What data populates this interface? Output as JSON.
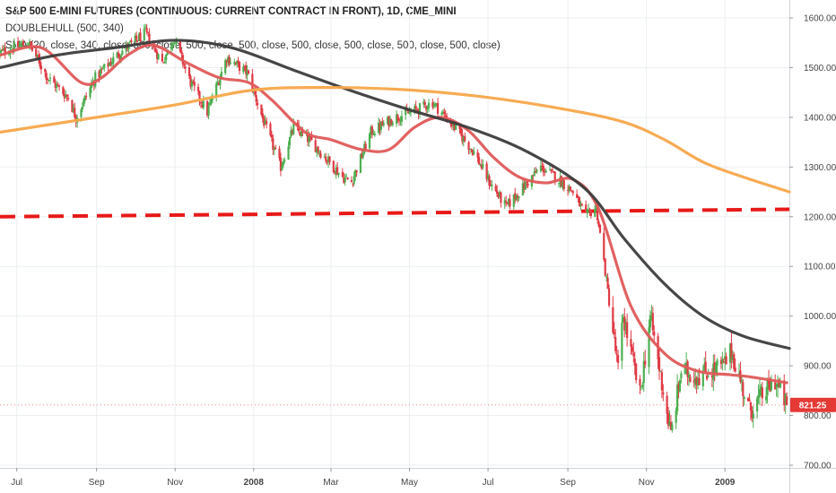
{
  "legend": {
    "title": "S&P 500 E-MINI FUTURES (CONTINUOUS: CURRENT CONTRACT IN FRONT), 1D, CME_MINI",
    "line2": "DOUBLEHULL (500, 340)",
    "line3": "SMA (20, close, 340, close, 500, close, 500, close, 500, close, 500, close, 500, close, 500, close, 500, close)"
  },
  "colors": {
    "up": "#4caf50",
    "down": "#e03a45",
    "hma": "#e05858",
    "ma_dark": "#3c3c3c",
    "ma_orange": "#f7a64a",
    "support": "#e81919",
    "price_tag": "#e53935"
  },
  "last_price_label": "821.25",
  "chart_data": {
    "type": "candlestick",
    "title": "S&P 500 E-MINI FUTURES (CONTINUOUS: CURRENT CONTRACT IN FRONT), 1D, CME_MINI",
    "x_tick_labels": [
      "Jul",
      "Sep",
      "Nov",
      "2008",
      "Mar",
      "May",
      "Jul",
      "Sep",
      "Nov",
      "2009"
    ],
    "x_tick_dates": [
      "2007-07",
      "2007-09",
      "2007-11",
      "2008-01",
      "2008-03",
      "2008-05",
      "2008-07",
      "2008-09",
      "2008-11",
      "2009-01"
    ],
    "y_tick_labels": [
      "1600.00",
      "1500.00",
      "1400.00",
      "1300.00",
      "1200.00",
      "1100.00",
      "1000.00",
      "900.00",
      "800.00",
      "700.00"
    ],
    "ylim": [
      700,
      1610
    ],
    "xlim": [
      "2007-06-18",
      "2009-02-20"
    ],
    "close_path": [
      [
        "2007-06-18",
        1530
      ],
      [
        "2007-07-10",
        1550
      ],
      [
        "2007-07-25",
        1480
      ],
      [
        "2007-08-10",
        1440
      ],
      [
        "2007-08-16",
        1400
      ],
      [
        "2007-08-31",
        1480
      ],
      [
        "2007-09-19",
        1530
      ],
      [
        "2007-10-09",
        1570
      ],
      [
        "2007-10-22",
        1510
      ],
      [
        "2007-10-31",
        1560
      ],
      [
        "2007-11-13",
        1470
      ],
      [
        "2007-11-26",
        1410
      ],
      [
        "2007-12-11",
        1520
      ],
      [
        "2007-12-27",
        1490
      ],
      [
        "2008-01-09",
        1390
      ],
      [
        "2008-01-22",
        1300
      ],
      [
        "2008-02-01",
        1380
      ],
      [
        "2008-02-15",
        1350
      ],
      [
        "2008-03-10",
        1280
      ],
      [
        "2008-03-17",
        1270
      ],
      [
        "2008-04-01",
        1370
      ],
      [
        "2008-04-20",
        1400
      ],
      [
        "2008-05-02",
        1410
      ],
      [
        "2008-05-19",
        1430
      ],
      [
        "2008-06-05",
        1380
      ],
      [
        "2008-06-20",
        1330
      ],
      [
        "2008-07-02",
        1270
      ],
      [
        "2008-07-15",
        1220
      ],
      [
        "2008-08-01",
        1270
      ],
      [
        "2008-08-11",
        1300
      ],
      [
        "2008-08-25",
        1275
      ],
      [
        "2008-09-05",
        1250
      ],
      [
        "2008-09-15",
        1200
      ],
      [
        "2008-09-23",
        1220
      ],
      [
        "2008-09-29",
        1110
      ],
      [
        "2008-10-10",
        890
      ],
      [
        "2008-10-14",
        1000
      ],
      [
        "2008-10-27",
        840
      ],
      [
        "2008-11-04",
        1000
      ],
      [
        "2008-11-20",
        760
      ],
      [
        "2008-11-28",
        890
      ],
      [
        "2008-12-10",
        880
      ],
      [
        "2008-12-31",
        900
      ],
      [
        "2009-01-06",
        930
      ],
      [
        "2009-01-20",
        810
      ],
      [
        "2009-02-09",
        870
      ],
      [
        "2009-02-18",
        821.25
      ]
    ],
    "series": [
      {
        "name": "DOUBLEHULL (500, 340)",
        "points": [
          [
            "2007-06-18",
            1525
          ],
          [
            "2007-07-20",
            1540
          ],
          [
            "2007-08-20",
            1470
          ],
          [
            "2007-09-05",
            1480
          ],
          [
            "2007-09-25",
            1525
          ],
          [
            "2007-10-15",
            1545
          ],
          [
            "2007-11-10",
            1510
          ],
          [
            "2007-12-05",
            1480
          ],
          [
            "2007-12-28",
            1470
          ],
          [
            "2008-01-15",
            1435
          ],
          [
            "2008-02-10",
            1370
          ],
          [
            "2008-03-01",
            1355
          ],
          [
            "2008-03-25",
            1335
          ],
          [
            "2008-04-15",
            1335
          ],
          [
            "2008-05-05",
            1380
          ],
          [
            "2008-05-25",
            1400
          ],
          [
            "2008-06-15",
            1375
          ],
          [
            "2008-07-05",
            1320
          ],
          [
            "2008-07-25",
            1280
          ],
          [
            "2008-08-15",
            1268
          ],
          [
            "2008-09-05",
            1275
          ],
          [
            "2008-09-25",
            1215
          ],
          [
            "2008-10-20",
            1020
          ],
          [
            "2008-11-15",
            925
          ],
          [
            "2008-12-10",
            890
          ],
          [
            "2009-01-05",
            882
          ],
          [
            "2009-01-20",
            878
          ],
          [
            "2009-02-18",
            866
          ]
        ]
      },
      {
        "name": "SMA 340",
        "points": [
          [
            "2007-06-18",
            1500
          ],
          [
            "2007-08-01",
            1525
          ],
          [
            "2007-09-15",
            1540
          ],
          [
            "2007-11-01",
            1555
          ],
          [
            "2007-12-15",
            1540
          ],
          [
            "2008-02-01",
            1495
          ],
          [
            "2008-03-15",
            1455
          ],
          [
            "2008-05-01",
            1415
          ],
          [
            "2008-06-15",
            1380
          ],
          [
            "2008-08-01",
            1330
          ],
          [
            "2008-09-15",
            1255
          ],
          [
            "2008-10-15",
            1155
          ],
          [
            "2008-11-15",
            1065
          ],
          [
            "2008-12-15",
            1000
          ],
          [
            "2009-01-15",
            960
          ],
          [
            "2009-02-20",
            935
          ]
        ]
      },
      {
        "name": "SMA 500",
        "points": [
          [
            "2007-06-18",
            1370
          ],
          [
            "2007-09-01",
            1400
          ],
          [
            "2007-11-01",
            1425
          ],
          [
            "2008-01-01",
            1455
          ],
          [
            "2008-03-01",
            1460
          ],
          [
            "2008-05-01",
            1455
          ],
          [
            "2008-07-01",
            1440
          ],
          [
            "2008-09-01",
            1415
          ],
          [
            "2008-10-15",
            1390
          ],
          [
            "2008-11-15",
            1355
          ],
          [
            "2008-12-15",
            1310
          ],
          [
            "2009-01-15",
            1280
          ],
          [
            "2009-02-20",
            1250
          ]
        ]
      }
    ],
    "support_line": {
      "from": [
        "2007-06-18",
        1200
      ],
      "to": [
        "2009-02-20",
        1215
      ],
      "style": "dashed"
    },
    "last_price": 821.25,
    "grid": true
  }
}
